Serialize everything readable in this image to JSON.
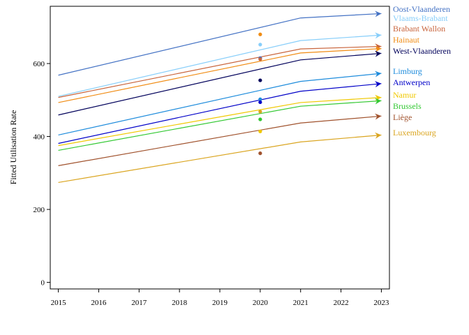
{
  "chart_data": {
    "type": "line",
    "ylabel": "Fitted Utilisation Rate",
    "xlabel": "",
    "x": [
      2015,
      2021,
      2023
    ],
    "xticks": [
      2015,
      2016,
      2017,
      2018,
      2019,
      2020,
      2021,
      2022,
      2023
    ],
    "yticks": [
      0,
      200,
      400,
      600
    ],
    "xlim": [
      2014.8,
      2023.2
    ],
    "ylim": [
      -18,
      757
    ],
    "grid": false,
    "legend": "direct labels at right end of lines",
    "marker_x": 2020,
    "series": [
      {
        "name": "Oost-Vlaanderen",
        "color": "#4472c4",
        "values": [
          568,
          725,
          737
        ],
        "point": 615
      },
      {
        "name": "Vlaams-Brabant",
        "color": "#87cefa",
        "values": [
          510,
          663,
          678
        ],
        "point": 652
      },
      {
        "name": "Brabant Wallon",
        "color": "#c8643c",
        "values": [
          507,
          640,
          647
        ],
        "point": 612
      },
      {
        "name": "Hainaut",
        "color": "#f08c14",
        "values": [
          493,
          629,
          641
        ],
        "point": 680
      },
      {
        "name": "West-Vlaanderen",
        "color": "#00005a",
        "values": [
          459,
          610,
          628
        ],
        "point": 554
      },
      {
        "name": "Limburg",
        "color": "#1e8cdc",
        "values": [
          404,
          551,
          573
        ],
        "point": 502
      },
      {
        "name": "Antwerpen",
        "color": "#0000c8",
        "values": [
          381,
          524,
          545
        ],
        "point": 494
      },
      {
        "name": "Namur",
        "color": "#f0c800",
        "values": [
          375,
          493,
          507
        ],
        "point": 414
      },
      {
        "name": "Brussels",
        "color": "#32c832",
        "values": [
          362,
          483,
          498
        ],
        "point": 447
      },
      {
        "name": "Liège",
        "color": "#a0522d",
        "values": [
          320,
          437,
          456
        ],
        "point": 354
      },
      {
        "name": "Luxembourg",
        "color": "#daa520",
        "values": [
          274,
          385,
          404
        ],
        "point": 468
      }
    ]
  }
}
